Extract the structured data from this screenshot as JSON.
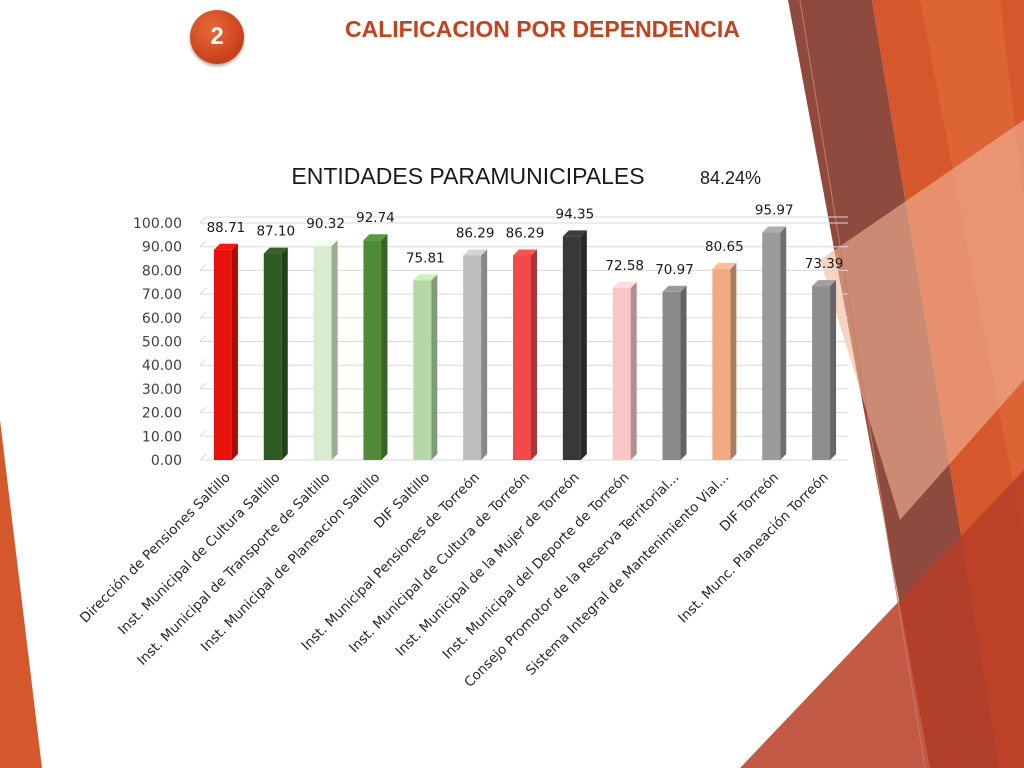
{
  "slide": {
    "number": "2",
    "title": "CALIFICACION POR DEPENDENCIA"
  },
  "colors": {
    "accent": "#c9401a",
    "deco_orange": "#d4582b",
    "deco_dark": "#8e4a3e"
  },
  "chart_data": {
    "type": "bar",
    "title": "ENTIDADES PARAMUNICIPALES",
    "subtitle": "84.24%",
    "xlabel": "",
    "ylabel": "",
    "ylim": [
      0,
      100
    ],
    "grid": true,
    "legend": "none",
    "y_ticks": [
      "0.00",
      "10.00",
      "20.00",
      "30.00",
      "40.00",
      "50.00",
      "60.00",
      "70.00",
      "80.00",
      "90.00",
      "100.00"
    ],
    "categories": [
      "Dirección de Pensiones Saltillo",
      "Inst. Municipal de Cultura Saltillo",
      "Inst. Municipal de Transporte de Saltillo",
      "Inst. Municipal de Planeacion Saltillo",
      "DIF Saltillo",
      "Inst. Municipal Pensiones de Torreón",
      "Inst. Municipal de Cultura de Torreón",
      "Inst. Municipal de la Mujer de Torreón",
      "Inst. Municipal del Deporte de Torreón",
      "Consejo Promotor de la Reserva Territorial...",
      "Sistema Integral de Mantenimiento Vial...",
      "DIF Torreón",
      "Inst. Munc. Planeación Torreón"
    ],
    "values": [
      88.71,
      87.1,
      90.32,
      92.74,
      75.81,
      86.29,
      86.29,
      94.35,
      72.58,
      70.97,
      80.65,
      95.97,
      73.39
    ],
    "labels": [
      "88.71",
      "87.10",
      "90.32",
      "92.74",
      "75.81",
      "86.29",
      "86.29",
      "94.35",
      "72.58",
      "70.97",
      "80.65",
      "95.97",
      "73.39"
    ],
    "bar_colors": [
      "#e8120c",
      "#2f5a22",
      "#d9ecd2",
      "#4f8a35",
      "#b5d9a6",
      "#bdbdbd",
      "#f24a4a",
      "#383838",
      "#f9c5c5",
      "#8a8a8a",
      "#f2aa80",
      "#9b9b9b",
      "#8e8e8e"
    ]
  }
}
